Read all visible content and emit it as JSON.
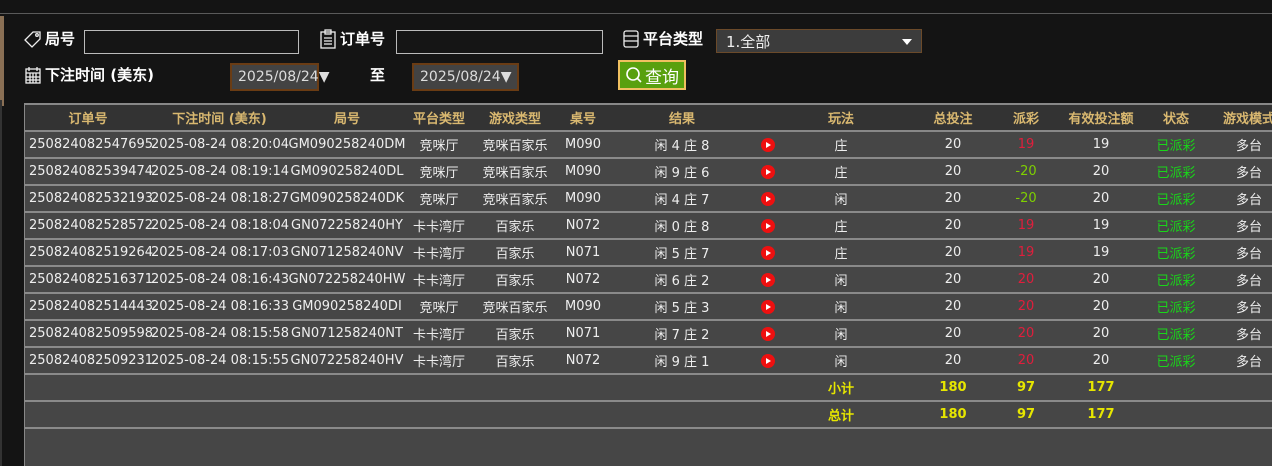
{
  "filters": {
    "round_label": "局号",
    "round_value": "",
    "order_label": "订单号",
    "order_value": "",
    "platform_label": "平台类型",
    "platform_value": "1.全部",
    "time_label": "下注时间 (美东)",
    "date_from": "2025/08/24▼",
    "to_label": "至",
    "date_to": "2025/08/24▼",
    "query_label": "查询"
  },
  "table": {
    "headers": [
      "订单号",
      "下注时间 (美东)",
      "局号",
      "平台类型",
      "游戏类型",
      "桌号",
      "结果",
      "",
      "玩法",
      "总投注",
      "派彩",
      "有效投注额",
      "状态",
      "游戏模式"
    ],
    "rows": [
      [
        "250824082547695",
        "2025-08-24 08:20:04",
        "GM090258240DM",
        "竞咪厅",
        "竞咪百家乐",
        "M090",
        "闲 4 庄 8",
        "video",
        "庄",
        "20",
        "19",
        "19",
        "已派彩",
        "多台"
      ],
      [
        "250824082539474",
        "2025-08-24 08:19:14",
        "GM090258240DL",
        "竞咪厅",
        "竞咪百家乐",
        "M090",
        "闲 9 庄 6",
        "video",
        "庄",
        "20",
        "-20",
        "20",
        "已派彩",
        "多台"
      ],
      [
        "250824082532193",
        "2025-08-24 08:18:27",
        "GM090258240DK",
        "竞咪厅",
        "竞咪百家乐",
        "M090",
        "闲 4 庄 7",
        "video",
        "闲",
        "20",
        "-20",
        "20",
        "已派彩",
        "多台"
      ],
      [
        "250824082528572",
        "2025-08-24 08:18:04",
        "GN072258240HY",
        "卡卡湾厅",
        "百家乐",
        "N072",
        "闲 0 庄 8",
        "video",
        "庄",
        "20",
        "19",
        "19",
        "已派彩",
        "多台"
      ],
      [
        "250824082519264",
        "2025-08-24 08:17:03",
        "GN071258240NV",
        "卡卡湾厅",
        "百家乐",
        "N071",
        "闲 5 庄 7",
        "video",
        "庄",
        "20",
        "19",
        "19",
        "已派彩",
        "多台"
      ],
      [
        "250824082516371",
        "2025-08-24 08:16:43",
        "GN072258240HW",
        "卡卡湾厅",
        "百家乐",
        "N072",
        "闲 6 庄 2",
        "video",
        "闲",
        "20",
        "20",
        "20",
        "已派彩",
        "多台"
      ],
      [
        "250824082514443",
        "2025-08-24 08:16:33",
        "GM090258240DI",
        "竞咪厅",
        "竞咪百家乐",
        "M090",
        "闲 5 庄 3",
        "video",
        "闲",
        "20",
        "20",
        "20",
        "已派彩",
        "多台"
      ],
      [
        "250824082509598",
        "2025-08-24 08:15:58",
        "GN071258240NT",
        "卡卡湾厅",
        "百家乐",
        "N071",
        "闲 7 庄 2",
        "video",
        "闲",
        "20",
        "20",
        "20",
        "已派彩",
        "多台"
      ],
      [
        "250824082509231",
        "2025-08-24 08:15:55",
        "GN072258240HV",
        "卡卡湾厅",
        "百家乐",
        "N072",
        "闲 9 庄 1",
        "video",
        "闲",
        "20",
        "20",
        "20",
        "已派彩",
        "多台"
      ]
    ],
    "subtotal": {
      "label": "小计",
      "total_bet": "180",
      "payout": "97",
      "valid_bet": "177"
    },
    "total": {
      "label": "总计",
      "total_bet": "180",
      "payout": "97",
      "valid_bet": "177"
    }
  },
  "colors": {
    "header_text": "#d9b870",
    "payout_negative_display": "#e01e3c",
    "payout_green": "#7ed000",
    "status": "#19d619",
    "sum": "#e6e600",
    "query_button": "#58a00e"
  }
}
